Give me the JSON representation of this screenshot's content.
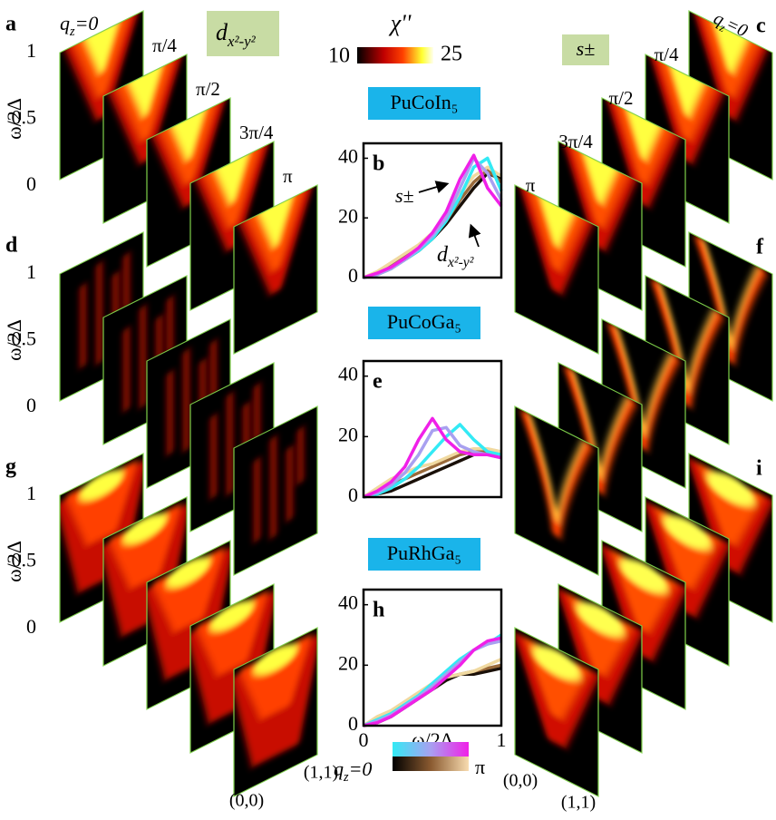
{
  "colorbar": {
    "label": "χ''",
    "min": 10,
    "max": 25
  },
  "left_box": [
    "d",
    "x²-y²"
  ],
  "right_box": [
    "s±"
  ],
  "y_axis": {
    "label": "ω/2Δ",
    "ticks": [
      1,
      0.5,
      0
    ]
  },
  "left_rows": [
    {
      "panel": "a",
      "first_label": [
        "q",
        "z",
        "=0"
      ],
      "top_labels": [
        "π/4",
        "π/2",
        "3π/4",
        "π"
      ]
    },
    {
      "panel": "d"
    },
    {
      "panel": "g"
    }
  ],
  "right_rows": [
    {
      "panel": "c",
      "first_label": [
        "q",
        "z",
        "=0"
      ],
      "top_labels": [
        "π/4",
        "π/2",
        "3π/4",
        "π"
      ]
    },
    {
      "panel": "f"
    },
    {
      "panel": "i"
    }
  ],
  "left_corners": [
    "(0,0)",
    "(1,1)"
  ],
  "right_corners": [
    "(0,0)",
    "(1,1)"
  ],
  "legend": {
    "parts": [
      "q",
      "z",
      "=0"
    ],
    "end": "π"
  },
  "chart_data": [
    {
      "type": "line",
      "title": "PuCoIn₅",
      "panel": "b",
      "x": [
        0,
        0.1,
        0.2,
        0.3,
        0.4,
        0.5,
        0.6,
        0.7,
        0.8,
        0.9,
        1
      ],
      "xlim": [
        0,
        1
      ],
      "ylim": [
        0,
        45
      ],
      "yticks": [
        0,
        20,
        40
      ],
      "annotations": [
        [
          "s±"
        ],
        [
          "d",
          "x²-y²"
        ]
      ],
      "series": [
        {
          "color": "#1a1008",
          "values": [
            0,
            1,
            3,
            6,
            9,
            13,
            18,
            24,
            30,
            35,
            33
          ]
        },
        {
          "color": "#9a6a3a",
          "values": [
            0,
            1.5,
            4,
            7,
            10,
            14,
            19,
            26,
            32,
            36,
            32
          ]
        },
        {
          "color": "#f0d9a0",
          "values": [
            0,
            2,
            5,
            8,
            11,
            15,
            21,
            28,
            34,
            37,
            34
          ]
        },
        {
          "color": "#33eaf5",
          "values": [
            0,
            1,
            3,
            6,
            9,
            13,
            19,
            27,
            37,
            40,
            29
          ]
        },
        {
          "color": "#a8a0f0",
          "values": [
            0,
            1,
            3,
            6,
            9.5,
            14,
            20,
            30,
            40,
            35,
            26
          ]
        },
        {
          "color": "#f020e8",
          "values": [
            0,
            1.5,
            3.5,
            6.5,
            10,
            15,
            22,
            33,
            41,
            30,
            24
          ]
        }
      ]
    },
    {
      "type": "line",
      "title": "PuCoGa₅",
      "panel": "e",
      "x": [
        0,
        0.1,
        0.2,
        0.3,
        0.4,
        0.5,
        0.6,
        0.7,
        0.8,
        0.9,
        1
      ],
      "xlim": [
        0,
        1
      ],
      "ylim": [
        0,
        45
      ],
      "yticks": [
        0,
        20,
        40
      ],
      "series": [
        {
          "color": "#1a1008",
          "values": [
            0,
            1,
            2,
            4,
            6,
            8,
            10,
            12,
            14,
            15,
            14
          ]
        },
        {
          "color": "#9a6a3a",
          "values": [
            0,
            2,
            4,
            6,
            8,
            10,
            12,
            14,
            15,
            15,
            14
          ]
        },
        {
          "color": "#f0d9a0",
          "values": [
            0,
            3,
            6,
            8,
            10,
            11,
            13,
            15,
            16,
            16,
            15
          ]
        },
        {
          "color": "#33eaf5",
          "values": [
            0,
            1,
            3,
            6,
            10,
            15,
            20,
            24,
            19,
            15,
            14
          ]
        },
        {
          "color": "#a8a0f0",
          "values": [
            0,
            1.5,
            4,
            8,
            14,
            22,
            23,
            17,
            15,
            14,
            13
          ]
        },
        {
          "color": "#f020e8",
          "values": [
            0,
            2,
            5,
            10,
            19,
            26,
            19,
            15,
            14,
            14,
            13
          ]
        }
      ]
    },
    {
      "type": "line",
      "title": "PuRhGa₅",
      "panel": "h",
      "x": [
        0,
        0.1,
        0.2,
        0.3,
        0.4,
        0.5,
        0.6,
        0.7,
        0.8,
        0.9,
        1
      ],
      "xlim": [
        0,
        1
      ],
      "xticks": [
        0,
        1
      ],
      "xlabel": "ω/2Δ",
      "ylim": [
        0,
        45
      ],
      "yticks": [
        0,
        20,
        40
      ],
      "series": [
        {
          "color": "#1a1008",
          "values": [
            0,
            1,
            3,
            6,
            9,
            12,
            15,
            17,
            17,
            18,
            19
          ]
        },
        {
          "color": "#9a6a3a",
          "values": [
            0,
            2,
            4,
            7,
            10,
            13,
            16,
            17,
            18,
            19,
            20
          ]
        },
        {
          "color": "#f0d9a0",
          "values": [
            0,
            3,
            5,
            8,
            11,
            14,
            16,
            17,
            18,
            20,
            22
          ]
        },
        {
          "color": "#33eaf5",
          "values": [
            0,
            2,
            4,
            7,
            10,
            14,
            18,
            22,
            25,
            27,
            30
          ]
        },
        {
          "color": "#a8a0f0",
          "values": [
            0,
            1.5,
            3.5,
            6.5,
            9.5,
            13,
            17,
            21,
            25,
            27,
            28
          ]
        },
        {
          "color": "#f020e8",
          "values": [
            0,
            1,
            3,
            6,
            9,
            12,
            16,
            20,
            25,
            28,
            29
          ]
        }
      ]
    }
  ]
}
